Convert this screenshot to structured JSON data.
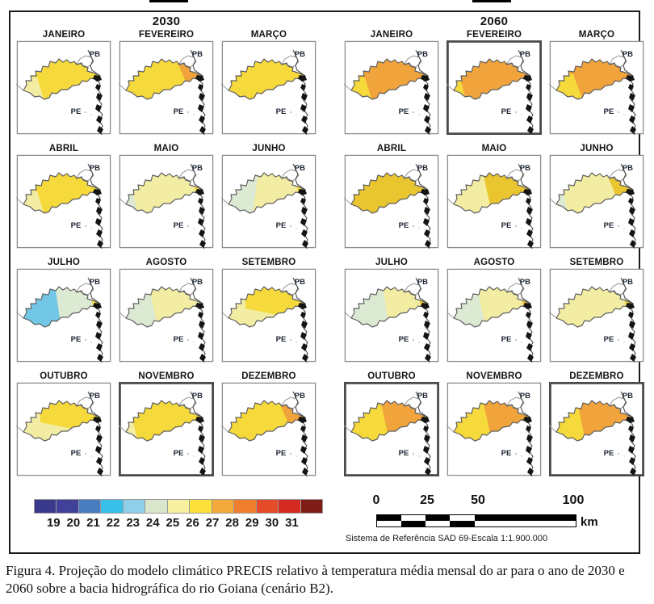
{
  "figure": {
    "years": [
      "2030",
      "2060"
    ],
    "state_labels": {
      "top_right": "PB",
      "bottom": "PE"
    },
    "palette": {
      "yellow": "#f6d93a",
      "pale_yellow": "#f3eda3",
      "pale_green": "#dcead3",
      "blue": "#72c6e6",
      "gold": "#e9c52f",
      "orange": "#f1a33c"
    },
    "panels": [
      {
        "year": "2030",
        "cells": [
          {
            "month": "JANEIRO",
            "base": "yellow",
            "patches": [
              {
                "shape": "sw",
                "color": "pale_yellow"
              }
            ],
            "border": "thin"
          },
          {
            "month": "FEVEREIRO",
            "base": "yellow",
            "patches": [
              {
                "shape": "ne",
                "color": "orange"
              }
            ],
            "border": "thin"
          },
          {
            "month": "MARÇO",
            "base": "yellow",
            "patches": [
              {
                "shape": "ne_tip_tiny",
                "color": "orange"
              }
            ],
            "border": "thin"
          },
          {
            "month": "ABRIL",
            "base": "yellow",
            "patches": [
              {
                "shape": "sw",
                "color": "pale_yellow"
              }
            ],
            "border": "thin"
          },
          {
            "month": "MAIO",
            "base": "pale_yellow",
            "patches": [
              {
                "shape": "sw_small",
                "color": "pale_green"
              },
              {
                "shape": "ne_tip",
                "color": "yellow"
              }
            ],
            "border": "thin"
          },
          {
            "month": "JUNHO",
            "base": "pale_yellow",
            "patches": [
              {
                "shape": "west",
                "color": "pale_green"
              },
              {
                "shape": "ne_tip",
                "color": "yellow"
              }
            ],
            "border": "thin"
          },
          {
            "month": "JULHO",
            "base": "pale_green",
            "patches": [
              {
                "shape": "west_large",
                "color": "blue"
              },
              {
                "shape": "ne_tip",
                "color": "yellow"
              }
            ],
            "border": "thin"
          },
          {
            "month": "AGOSTO",
            "base": "pale_yellow",
            "patches": [
              {
                "shape": "west_mid",
                "color": "pale_green"
              }
            ],
            "border": "thin"
          },
          {
            "month": "SETEMBRO",
            "base": "pale_yellow",
            "patches": [
              {
                "shape": "ne_mid",
                "color": "yellow"
              }
            ],
            "border": "thin"
          },
          {
            "month": "OUTUBRO",
            "base": "pale_yellow",
            "patches": [
              {
                "shape": "ne_mid",
                "color": "yellow"
              }
            ],
            "border": "thin"
          },
          {
            "month": "NOVEMBRO",
            "base": "yellow",
            "patches": [
              {
                "shape": "sw_small",
                "color": "pale_yellow"
              }
            ],
            "border": "thick"
          },
          {
            "month": "DEZEMBRO",
            "base": "yellow",
            "patches": [
              {
                "shape": "ne",
                "color": "orange"
              }
            ],
            "border": "thin"
          }
        ]
      },
      {
        "year": "2060",
        "cells": [
          {
            "month": "JANEIRO",
            "base": "orange",
            "patches": [
              {
                "shape": "sw",
                "color": "yellow"
              }
            ],
            "border": "thin"
          },
          {
            "month": "FEVEREIRO",
            "base": "orange",
            "patches": [
              {
                "shape": "sw_small",
                "color": "yellow"
              }
            ],
            "border": "thick"
          },
          {
            "month": "MARÇO",
            "base": "orange",
            "patches": [
              {
                "shape": "sw_large",
                "color": "yellow"
              }
            ],
            "border": "thin"
          },
          {
            "month": "ABRIL",
            "base": "gold",
            "patches": [],
            "border": "thin"
          },
          {
            "month": "MAIO",
            "base": "pale_yellow",
            "patches": [
              {
                "shape": "east",
                "color": "gold"
              }
            ],
            "border": "thin"
          },
          {
            "month": "JUNHO",
            "base": "pale_yellow",
            "patches": [
              {
                "shape": "sw_small",
                "color": "pale_green"
              },
              {
                "shape": "ne",
                "color": "gold"
              }
            ],
            "border": "thin"
          },
          {
            "month": "JULHO",
            "base": "pale_yellow",
            "patches": [
              {
                "shape": "west_large",
                "color": "pale_green"
              },
              {
                "shape": "ne_tip",
                "color": "gold"
              }
            ],
            "border": "thin"
          },
          {
            "month": "AGOSTO",
            "base": "pale_yellow",
            "patches": [
              {
                "shape": "west_mid",
                "color": "pale_green"
              },
              {
                "shape": "ne_tip",
                "color": "gold"
              }
            ],
            "border": "thin"
          },
          {
            "month": "SETEMBRO",
            "base": "pale_yellow",
            "patches": [
              {
                "shape": "ne_tip",
                "color": "gold"
              }
            ],
            "border": "thin"
          },
          {
            "month": "OUTUBRO",
            "base": "yellow",
            "patches": [
              {
                "shape": "east",
                "color": "orange"
              }
            ],
            "border": "thick"
          },
          {
            "month": "NOVEMBRO",
            "base": "yellow",
            "patches": [
              {
                "shape": "east",
                "color": "orange"
              }
            ],
            "border": "thin"
          },
          {
            "month": "DEZEMBRO",
            "base": "yellow",
            "patches": [
              {
                "shape": "east_large",
                "color": "orange"
              }
            ],
            "border": "thick"
          }
        ]
      }
    ],
    "legend": {
      "values": [
        "19",
        "20",
        "21",
        "22",
        "23",
        "24",
        "25",
        "26",
        "27",
        "28",
        "29",
        "30",
        "31"
      ],
      "swatches": [
        "#3a3a8c",
        "#41419a",
        "#4a7cc0",
        "#39c0e8",
        "#90cfe8",
        "#d9e6cc",
        "#f6f0a0",
        "#fbe13a",
        "#f4a93c",
        "#f07e2f",
        "#e44b28",
        "#d32b22",
        "#7d1d15"
      ]
    },
    "scalebar": {
      "ticks": [
        "0",
        "25",
        "50",
        "100"
      ],
      "unit": "km",
      "note": "Sistema de Referência SAD 69-Escala 1:1.900.000"
    },
    "caption": "Figura 4. Projeção do modelo climático PRECIS relativo à temperatura média mensal do ar para o ano de 2030 e 2060 sobre a bacia hidrográfica do rio Goiana (cenário B2)."
  }
}
